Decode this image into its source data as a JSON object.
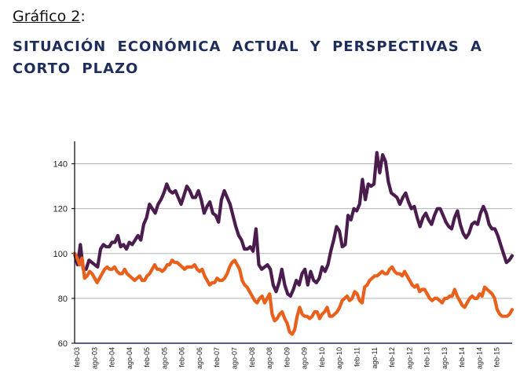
{
  "header": {
    "figure_label": "Gráfico 2",
    "figure_suffix": ":",
    "title": "SITUACIÓN ECONÓMICA ACTUAL Y PERSPECTIVAS A CORTO PLAZO"
  },
  "chart_data": {
    "type": "line",
    "title": "",
    "xlabel": "",
    "ylabel": "",
    "ylim": [
      60,
      150
    ],
    "yticks": [
      60,
      80,
      100,
      120,
      140
    ],
    "grid": true,
    "legend": "none",
    "xtick_labels": [
      "feb-03",
      "ago-03",
      "feb-04",
      "ago-04",
      "feb-05",
      "ago-05",
      "feb-06",
      "ago-06",
      "feb-07",
      "ago-07",
      "feb-08",
      "ago-08",
      "feb-09",
      "ago-09",
      "feb-10",
      "ago-10",
      "feb-11",
      "ago-11",
      "feb-12",
      "ago-12",
      "feb-13",
      "ago-13",
      "feb-14",
      "ago-14",
      "feb-15"
    ],
    "series": [
      {
        "color": "#4b1c4e",
        "values": [
          100,
          95,
          104,
          93,
          93,
          97,
          96,
          95,
          94,
          102,
          104,
          103,
          103,
          105,
          105,
          108,
          103,
          104,
          102,
          105,
          104,
          106,
          108,
          106,
          113,
          116,
          122,
          120,
          118,
          122,
          124,
          127,
          131,
          128,
          127,
          128,
          125,
          122,
          126,
          130,
          128,
          125,
          125,
          128,
          124,
          118,
          121,
          123,
          118,
          117,
          114,
          124,
          128,
          125,
          122,
          117,
          112,
          108,
          106,
          102,
          102,
          103,
          101,
          111,
          95,
          93,
          94,
          95,
          93,
          86,
          83,
          87,
          93,
          86,
          82,
          81,
          84,
          88,
          86,
          91,
          93,
          86,
          92,
          88,
          87,
          89,
          94,
          92,
          95,
          101,
          106,
          112,
          110,
          103,
          104,
          117,
          115,
          120,
          119,
          122,
          133,
          124,
          131,
          130,
          131,
          145,
          136,
          144,
          141,
          132,
          127,
          126,
          125,
          122,
          125,
          127,
          123,
          120,
          121,
          116,
          112,
          116,
          118,
          115,
          113,
          117,
          120,
          120,
          117,
          114,
          112,
          111,
          116,
          119,
          113,
          109,
          107,
          109,
          113,
          114,
          113,
          118,
          121,
          118,
          113,
          111,
          111,
          108,
          104,
          100,
          96,
          97,
          99
        ]
      },
      {
        "color": "#e8601c",
        "values": [
          100,
          98,
          95,
          98,
          89,
          90,
          92,
          91,
          89,
          87,
          89,
          91,
          93,
          94,
          93,
          93,
          94,
          92,
          91,
          91,
          93,
          91,
          90,
          89,
          88,
          89,
          90,
          88,
          88,
          90,
          91,
          93,
          95,
          93,
          93,
          92,
          93,
          95,
          95,
          97,
          96,
          96,
          95,
          94,
          93,
          94,
          94,
          94,
          95,
          93,
          92,
          93,
          90,
          88,
          86,
          87,
          87,
          89,
          88,
          88,
          89,
          91,
          94,
          96,
          97,
          95,
          93,
          88,
          86,
          85,
          83,
          81,
          79,
          78,
          80,
          81,
          78,
          80,
          82,
          73,
          70,
          71,
          73,
          74,
          71,
          69,
          65,
          64,
          66,
          72,
          76,
          73,
          72,
          72,
          71,
          72,
          74,
          74,
          71,
          73,
          74,
          76,
          72,
          72,
          73,
          74,
          76,
          79,
          80,
          81,
          79,
          80,
          83,
          82,
          79,
          78,
          85,
          86,
          88,
          89,
          90,
          90,
          91,
          92,
          91,
          91,
          93,
          94,
          92,
          91,
          91,
          90,
          92,
          90,
          88,
          86,
          85,
          86,
          83,
          84,
          84,
          82,
          80,
          79,
          80,
          80,
          79,
          78,
          80,
          80,
          81,
          81,
          84,
          81,
          79,
          77,
          76,
          78,
          80,
          81,
          80,
          80,
          82,
          81,
          85,
          84,
          83,
          82,
          80,
          75,
          73,
          72,
          72,
          72,
          73,
          75
        ]
      }
    ]
  }
}
